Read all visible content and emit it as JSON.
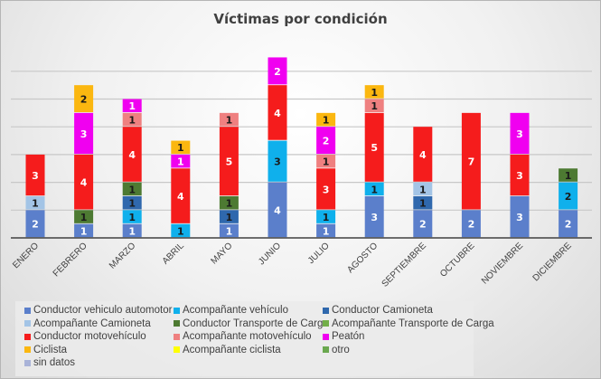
{
  "chart_data": {
    "type": "bar",
    "stacked": true,
    "title": "Víctimas por condición",
    "xlabel": "",
    "ylabel": "",
    "ylim": [
      0,
      14
    ],
    "grid": true,
    "legend_position": "bottom",
    "categories": [
      "ENERO",
      "FEBRERO",
      "MARZO",
      "ABRIL",
      "MAYO",
      "JUNIO",
      "JULIO",
      "AGOSTO",
      "SEPTIEMBRE",
      "OCTUBRE",
      "NOVIEMBRE",
      "DICIEMBRE"
    ],
    "series": [
      {
        "name": "Conductor vehiculo automotor",
        "color": "#5b7fcb",
        "values": [
          2,
          1,
          1,
          0,
          1,
          4,
          1,
          3,
          2,
          2,
          3,
          2
        ]
      },
      {
        "name": "Acompañante vehículo",
        "color": "#0fb0ec",
        "values": [
          0,
          0,
          1,
          1,
          0,
          3,
          1,
          1,
          0,
          0,
          0,
          2
        ]
      },
      {
        "name": "Conductor Camioneta",
        "color": "#2f68ad",
        "values": [
          0,
          0,
          1,
          0,
          1,
          0,
          0,
          0,
          1,
          0,
          0,
          0
        ]
      },
      {
        "name": "Acompañante Camioneta",
        "color": "#a3c4e6",
        "values": [
          1,
          0,
          0,
          0,
          0,
          0,
          0,
          0,
          1,
          0,
          0,
          0
        ]
      },
      {
        "name": "Conductor Transporte de Carga",
        "color": "#4d7a32",
        "values": [
          0,
          1,
          1,
          0,
          1,
          0,
          0,
          0,
          0,
          0,
          0,
          1
        ]
      },
      {
        "name": "Acompañante Transporte de Carga",
        "color": "#72ae48",
        "values": [
          0,
          0,
          0,
          0,
          0,
          0,
          0,
          0,
          0,
          0,
          0,
          0
        ]
      },
      {
        "name": "Conductor motovehículo",
        "color": "#f51c1c",
        "values": [
          3,
          4,
          4,
          4,
          5,
          4,
          3,
          5,
          4,
          7,
          3,
          0
        ]
      },
      {
        "name": "Acompañante motovehículo",
        "color": "#ef8080",
        "values": [
          0,
          0,
          1,
          0,
          1,
          0,
          1,
          1,
          0,
          0,
          0,
          0
        ]
      },
      {
        "name": "Peatón",
        "color": "#f000f0",
        "values": [
          0,
          3,
          1,
          1,
          0,
          2,
          2,
          0,
          0,
          0,
          3,
          0
        ]
      },
      {
        "name": "Ciclista",
        "color": "#fbb710",
        "values": [
          0,
          2,
          0,
          1,
          0,
          0,
          1,
          1,
          0,
          0,
          0,
          0
        ]
      },
      {
        "name": "Acompañante ciclista",
        "color": "#ffff00",
        "values": [
          0,
          0,
          0,
          0,
          0,
          0,
          0,
          0,
          0,
          0,
          0,
          0
        ]
      },
      {
        "name": "otro",
        "color": "#6aa84f",
        "values": [
          0,
          0,
          0,
          0,
          0,
          0,
          0,
          0,
          0,
          0,
          0,
          0
        ]
      },
      {
        "name": "sin datos",
        "color": "#a9b3d8",
        "values": [
          0,
          0,
          0,
          0,
          0,
          0,
          0,
          0,
          0,
          0,
          0,
          0
        ]
      }
    ]
  }
}
